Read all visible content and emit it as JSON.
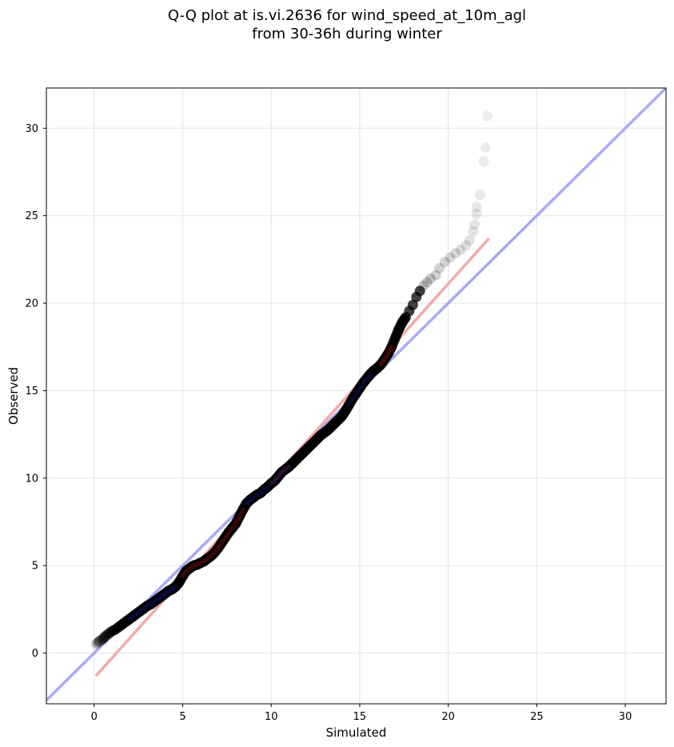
{
  "title": {
    "line1": "Q-Q plot at is.vi.2636 for wind_speed_at_10m_agl",
    "line2": "from 30-36h during winter"
  },
  "chart_data": {
    "type": "scatter",
    "xlabel": "Simulated",
    "ylabel": "Observed",
    "xlim": [
      -2.7,
      32.3
    ],
    "ylim": [
      -2.9,
      32.3
    ],
    "xticks": [
      0,
      5,
      10,
      15,
      20,
      25,
      30
    ],
    "yticks": [
      0,
      5,
      10,
      15,
      20,
      25,
      30
    ],
    "grid": true,
    "reference_line": {
      "description": "1:1 line",
      "color": "#aaaaf5",
      "x": [
        -2.7,
        32.3
      ],
      "y": [
        -2.7,
        32.3
      ]
    },
    "fit_line": {
      "color": "#f5a9a9",
      "x": [
        0.1,
        22.3
      ],
      "y": [
        -1.3,
        23.7
      ]
    },
    "point_color": "#000000",
    "points": [
      [
        0.1,
        0.5
      ],
      [
        0.2,
        0.6
      ],
      [
        0.3,
        0.7
      ],
      [
        0.5,
        0.8
      ],
      [
        0.6,
        0.95
      ],
      [
        0.8,
        1.1
      ],
      [
        1.0,
        1.25
      ],
      [
        1.2,
        1.35
      ],
      [
        1.4,
        1.5
      ],
      [
        1.6,
        1.65
      ],
      [
        1.8,
        1.8
      ],
      [
        2.0,
        1.95
      ],
      [
        2.2,
        2.1
      ],
      [
        2.4,
        2.25
      ],
      [
        2.6,
        2.4
      ],
      [
        2.8,
        2.55
      ],
      [
        3.0,
        2.7
      ],
      [
        3.2,
        2.8
      ],
      [
        3.4,
        2.95
      ],
      [
        3.6,
        3.1
      ],
      [
        3.8,
        3.25
      ],
      [
        4.0,
        3.4
      ],
      [
        4.2,
        3.55
      ],
      [
        4.4,
        3.65
      ],
      [
        4.6,
        3.8
      ],
      [
        4.8,
        4.05
      ],
      [
        5.0,
        4.4
      ],
      [
        5.2,
        4.7
      ],
      [
        5.4,
        4.85
      ],
      [
        5.6,
        5.0
      ],
      [
        5.8,
        5.05
      ],
      [
        6.0,
        5.15
      ],
      [
        6.2,
        5.25
      ],
      [
        6.4,
        5.4
      ],
      [
        6.6,
        5.55
      ],
      [
        6.8,
        5.75
      ],
      [
        7.0,
        6.0
      ],
      [
        7.2,
        6.3
      ],
      [
        7.4,
        6.6
      ],
      [
        7.6,
        6.9
      ],
      [
        7.8,
        7.15
      ],
      [
        8.0,
        7.4
      ],
      [
        8.2,
        7.8
      ],
      [
        8.4,
        8.2
      ],
      [
        8.6,
        8.55
      ],
      [
        8.8,
        8.75
      ],
      [
        9.0,
        8.9
      ],
      [
        9.2,
        9.05
      ],
      [
        9.4,
        9.15
      ],
      [
        9.6,
        9.35
      ],
      [
        9.8,
        9.5
      ],
      [
        10.0,
        9.7
      ],
      [
        10.2,
        9.85
      ],
      [
        10.4,
        10.1
      ],
      [
        10.6,
        10.35
      ],
      [
        10.8,
        10.5
      ],
      [
        11.0,
        10.65
      ],
      [
        11.2,
        10.85
      ],
      [
        11.4,
        11.05
      ],
      [
        11.6,
        11.25
      ],
      [
        11.8,
        11.45
      ],
      [
        12.0,
        11.65
      ],
      [
        12.2,
        11.85
      ],
      [
        12.4,
        12.05
      ],
      [
        12.6,
        12.25
      ],
      [
        12.8,
        12.45
      ],
      [
        13.0,
        12.6
      ],
      [
        13.2,
        12.75
      ],
      [
        13.4,
        12.95
      ],
      [
        13.6,
        13.15
      ],
      [
        13.8,
        13.35
      ],
      [
        14.0,
        13.55
      ],
      [
        14.2,
        13.85
      ],
      [
        14.4,
        14.2
      ],
      [
        14.6,
        14.55
      ],
      [
        14.8,
        14.85
      ],
      [
        15.0,
        15.15
      ],
      [
        15.2,
        15.45
      ],
      [
        15.4,
        15.7
      ],
      [
        15.6,
        15.95
      ],
      [
        15.8,
        16.15
      ],
      [
        16.0,
        16.3
      ],
      [
        16.2,
        16.5
      ],
      [
        16.4,
        16.8
      ],
      [
        16.6,
        17.1
      ],
      [
        16.8,
        17.5
      ],
      [
        17.0,
        18.0
      ],
      [
        17.2,
        18.5
      ],
      [
        17.4,
        18.9
      ],
      [
        17.6,
        19.2
      ],
      [
        17.8,
        19.55
      ],
      [
        18.0,
        19.9
      ],
      [
        18.2,
        20.35
      ],
      [
        18.4,
        20.7
      ],
      [
        18.6,
        21.0
      ],
      [
        18.8,
        21.2
      ],
      [
        19.0,
        21.4
      ],
      [
        19.3,
        21.6
      ],
      [
        19.5,
        22.0
      ],
      [
        19.8,
        22.35
      ],
      [
        20.1,
        22.6
      ],
      [
        20.4,
        22.85
      ],
      [
        20.7,
        23.05
      ],
      [
        21.0,
        23.3
      ],
      [
        21.2,
        23.6
      ],
      [
        21.4,
        24.1
      ],
      [
        21.5,
        24.5
      ],
      [
        21.6,
        25.1
      ],
      [
        21.6,
        25.5
      ],
      [
        21.8,
        26.2
      ],
      [
        22.0,
        28.1
      ],
      [
        22.1,
        28.9
      ],
      [
        22.2,
        30.7
      ]
    ]
  }
}
